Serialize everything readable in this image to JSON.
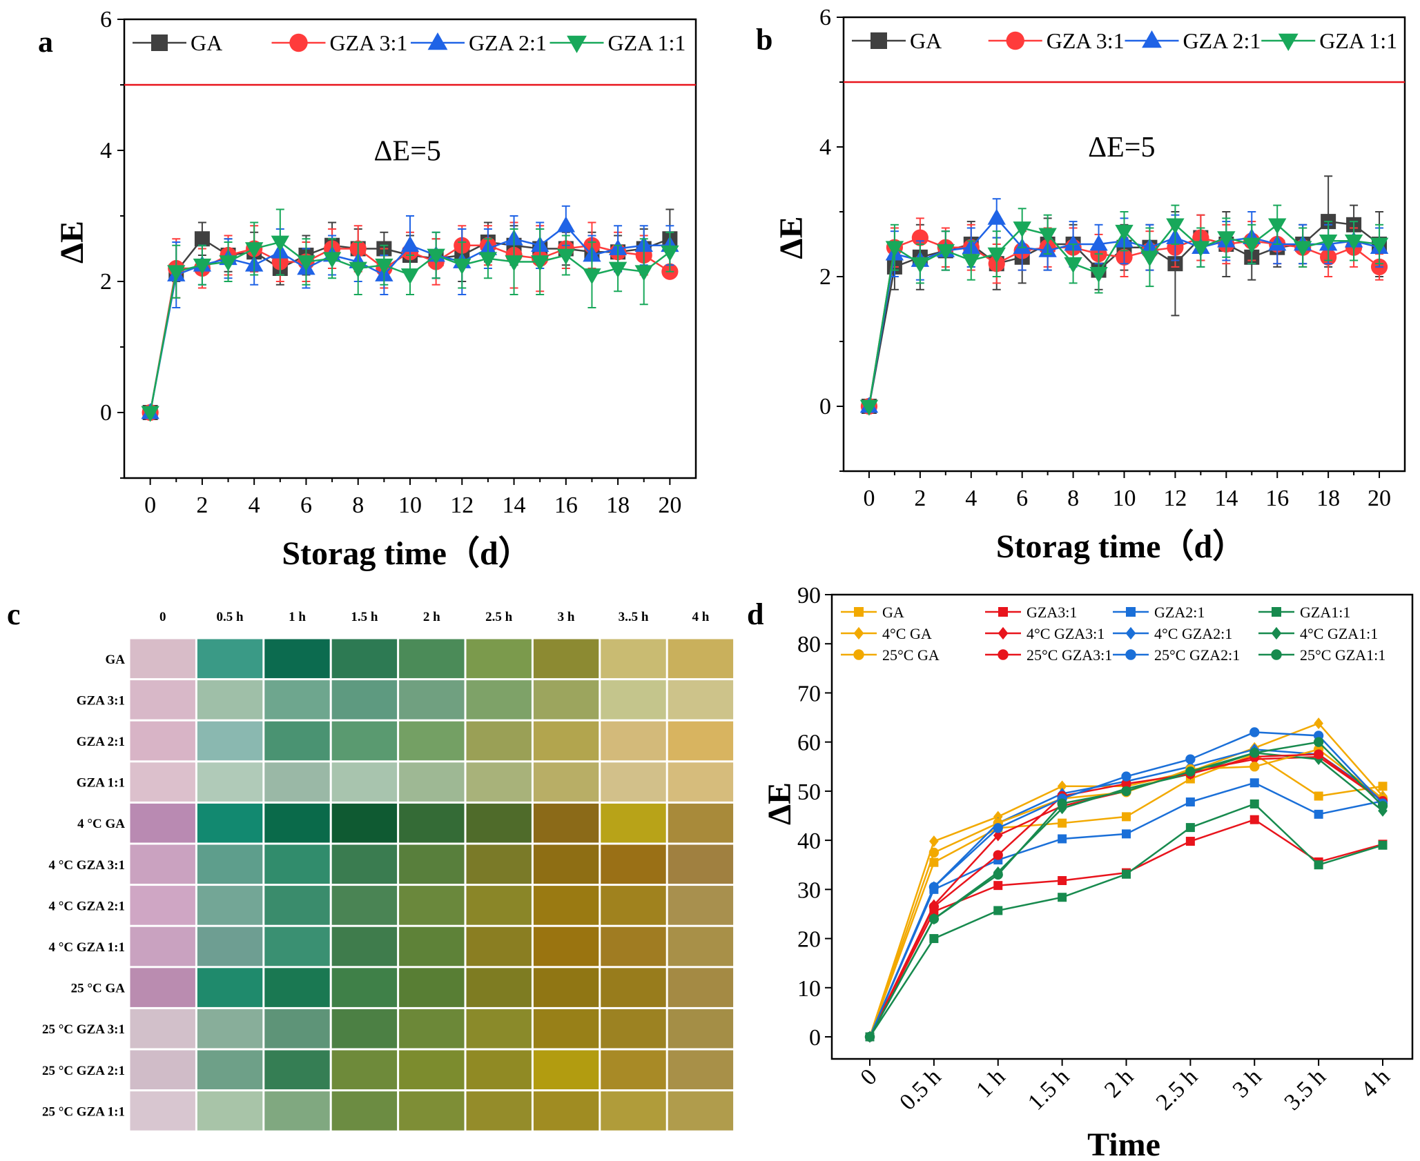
{
  "panels": {
    "a": {
      "letter": "a"
    },
    "b": {
      "letter": "b"
    },
    "c": {
      "letter": "c"
    },
    "d": {
      "letter": "d"
    }
  },
  "chart_data": [
    {
      "id": "a",
      "type": "line",
      "title": "",
      "xlabel": "Storag time（d）",
      "ylabel": "ΔE",
      "xlim": [
        -1,
        21
      ],
      "ylim": [
        -1,
        6
      ],
      "xticks": [
        0,
        2,
        4,
        6,
        8,
        10,
        12,
        14,
        16,
        18,
        20
      ],
      "yticks": [
        0,
        2,
        4,
        6
      ],
      "annotation": "ΔE=5",
      "reference_line": 5,
      "legend": "top",
      "x": [
        0,
        1,
        2,
        3,
        4,
        5,
        6,
        7,
        8,
        9,
        10,
        11,
        12,
        13,
        14,
        15,
        16,
        17,
        18,
        19,
        20
      ],
      "series": [
        {
          "name": "GA",
          "color": "#404040",
          "marker": "square",
          "values": [
            0,
            2.15,
            2.65,
            2.4,
            2.45,
            2.2,
            2.4,
            2.55,
            2.5,
            2.5,
            2.4,
            2.35,
            2.4,
            2.6,
            2.55,
            2.5,
            2.5,
            2.45,
            2.45,
            2.5,
            2.65
          ],
          "errors": [
            0,
            0.15,
            0.25,
            0.25,
            0.3,
            0.25,
            0.3,
            0.35,
            0.3,
            0.25,
            0.3,
            0.3,
            0.4,
            0.3,
            0.3,
            0.3,
            0.25,
            0.3,
            0.25,
            0.3,
            0.45
          ]
        },
        {
          "name": "GZA 3:1",
          "color": "#ff3b3b",
          "marker": "circle",
          "values": [
            0,
            2.2,
            2.2,
            2.4,
            2.5,
            2.3,
            2.3,
            2.5,
            2.5,
            2.2,
            2.45,
            2.3,
            2.55,
            2.55,
            2.4,
            2.35,
            2.5,
            2.55,
            2.45,
            2.4,
            2.15
          ],
          "errors": [
            0,
            0.45,
            0.3,
            0.3,
            0.35,
            0.3,
            0.3,
            0.3,
            0.35,
            0.3,
            0.3,
            0.35,
            0.3,
            0.3,
            0.5,
            0.5,
            0.3,
            0.35,
            0.3,
            0.3,
            0.1
          ]
        },
        {
          "name": "GZA 2:1",
          "color": "#1f63e6",
          "marker": "triangle-up",
          "values": [
            0,
            2.1,
            2.25,
            2.35,
            2.25,
            2.45,
            2.2,
            2.4,
            2.3,
            2.1,
            2.55,
            2.4,
            2.3,
            2.5,
            2.65,
            2.55,
            2.85,
            2.4,
            2.5,
            2.55,
            2.55
          ],
          "errors": [
            0,
            0.5,
            0.3,
            0.3,
            0.3,
            0.35,
            0.3,
            0.3,
            0.3,
            0.3,
            0.45,
            0.35,
            0.5,
            0.3,
            0.35,
            0.35,
            0.3,
            0.3,
            0.35,
            0.3,
            0.3
          ]
        },
        {
          "name": "GZA 1:1",
          "color": "#18a85a",
          "marker": "triangle-down",
          "values": [
            0,
            2.15,
            2.25,
            2.3,
            2.5,
            2.6,
            2.3,
            2.35,
            2.2,
            2.25,
            2.1,
            2.4,
            2.25,
            2.35,
            2.3,
            2.3,
            2.4,
            2.1,
            2.2,
            2.15,
            2.45
          ],
          "errors": [
            0,
            0.4,
            0.3,
            0.3,
            0.4,
            0.5,
            0.35,
            0.3,
            0.4,
            0.3,
            0.3,
            0.35,
            0.35,
            0.3,
            0.5,
            0.5,
            0.3,
            0.5,
            0.35,
            0.5,
            0.3
          ]
        }
      ]
    },
    {
      "id": "b",
      "type": "line",
      "title": "",
      "xlabel": "Storag time（d）",
      "ylabel": "ΔE",
      "xlim": [
        -1,
        21
      ],
      "ylim": [
        -1,
        6
      ],
      "xticks": [
        0,
        2,
        4,
        6,
        8,
        10,
        12,
        14,
        16,
        18,
        20
      ],
      "yticks": [
        0,
        2,
        4,
        6
      ],
      "annotation": "ΔE=5",
      "reference_line": 5,
      "legend": "top",
      "x": [
        0,
        1,
        2,
        3,
        4,
        5,
        6,
        7,
        8,
        9,
        10,
        11,
        12,
        13,
        14,
        15,
        16,
        17,
        18,
        19,
        20
      ],
      "series": [
        {
          "name": "GA",
          "color": "#404040",
          "marker": "square",
          "values": [
            0,
            2.15,
            2.3,
            2.4,
            2.5,
            2.2,
            2.3,
            2.5,
            2.5,
            2.1,
            2.45,
            2.45,
            2.2,
            2.6,
            2.5,
            2.3,
            2.45,
            2.5,
            2.85,
            2.8,
            2.5
          ],
          "errors": [
            0,
            0.35,
            0.5,
            0.3,
            0.35,
            0.4,
            0.4,
            0.4,
            0.3,
            0.3,
            0.35,
            0.35,
            0.8,
            0.35,
            0.5,
            0.35,
            0.3,
            0.3,
            0.7,
            0.3,
            0.5
          ]
        },
        {
          "name": "GZA 3:1",
          "color": "#ff3b3b",
          "marker": "circle",
          "values": [
            0,
            2.45,
            2.6,
            2.45,
            2.45,
            2.2,
            2.4,
            2.45,
            2.45,
            2.35,
            2.3,
            2.4,
            2.45,
            2.6,
            2.5,
            2.55,
            2.5,
            2.45,
            2.3,
            2.45,
            2.15
          ],
          "errors": [
            0,
            0.3,
            0.3,
            0.3,
            0.35,
            0.3,
            0.3,
            0.3,
            0.3,
            0.3,
            0.3,
            0.3,
            0.3,
            0.35,
            0.3,
            0.3,
            0.3,
            0.3,
            0.3,
            0.3,
            0.2
          ]
        },
        {
          "name": "GZA 2:1",
          "color": "#1f63e6",
          "marker": "triangle-up",
          "values": [
            0,
            2.35,
            2.25,
            2.4,
            2.45,
            2.9,
            2.45,
            2.4,
            2.5,
            2.5,
            2.55,
            2.45,
            2.6,
            2.45,
            2.55,
            2.6,
            2.5,
            2.5,
            2.5,
            2.55,
            2.45
          ],
          "errors": [
            0,
            0.35,
            0.3,
            0.3,
            0.3,
            0.3,
            0.35,
            0.3,
            0.35,
            0.3,
            0.35,
            0.35,
            0.35,
            0.3,
            0.3,
            0.4,
            0.3,
            0.3,
            0.3,
            0.3,
            0.3
          ]
        },
        {
          "name": "GZA 1:1",
          "color": "#18a85a",
          "marker": "triangle-down",
          "values": [
            0,
            2.45,
            2.2,
            2.4,
            2.25,
            2.35,
            2.75,
            2.65,
            2.2,
            2.05,
            2.7,
            2.3,
            2.8,
            2.45,
            2.6,
            2.5,
            2.8,
            2.45,
            2.55,
            2.55,
            2.5
          ],
          "errors": [
            0,
            0.35,
            0.3,
            0.3,
            0.3,
            0.35,
            0.3,
            0.3,
            0.3,
            0.3,
            0.3,
            0.45,
            0.3,
            0.3,
            0.3,
            0.3,
            0.3,
            0.3,
            0.3,
            0.3,
            0.3
          ]
        }
      ]
    },
    {
      "id": "c",
      "type": "heatmap",
      "columns": [
        "0",
        "0.5 h",
        "1 h",
        "1.5 h",
        "2 h",
        "2.5 h",
        "3 h",
        "3..5 h",
        "4 h"
      ],
      "rows": [
        "GA",
        "GZA 3:1",
        "GZA 2:1",
        "GZA 1:1",
        "4 °C GA",
        "4 °C GZA 3:1",
        "4 °C GZA 2:1",
        "4 °C GZA 1:1",
        "25 °C GA",
        "25 °C GZA 3:1",
        "25 °C GZA 2:1",
        "25 °C GZA 1:1"
      ],
      "cell_colors": [
        [
          "#d8bcc8",
          "#3a9a86",
          "#0c6b4f",
          "#2d7a53",
          "#4b8b58",
          "#7b9a4c",
          "#8c8a32",
          "#c9bb72",
          "#c9b05c"
        ],
        [
          "#d8b8c8",
          "#9fbfa8",
          "#6ea68e",
          "#5e9a80",
          "#70a080",
          "#7ea268",
          "#9ca55e",
          "#c4c58c",
          "#cdc38a"
        ],
        [
          "#d8b4c6",
          "#8ab8b0",
          "#4a9372",
          "#5a9a70",
          "#74a064",
          "#9aa056",
          "#b2a54e",
          "#d3ba7a",
          "#d8b460"
        ],
        [
          "#dcc0cc",
          "#b0cab8",
          "#9ab8a6",
          "#a8c4ae",
          "#9eb894",
          "#a8b27a",
          "#b8ae66",
          "#d2c08a",
          "#d6bc7c"
        ],
        [
          "#b98ab2",
          "#128970",
          "#0a6a4a",
          "#0f5a32",
          "#346b36",
          "#4f6b2a",
          "#8b6a18",
          "#b8a318",
          "#a88a3a"
        ],
        [
          "#caa2c0",
          "#5e9e8c",
          "#318c6c",
          "#3a7c50",
          "#587f3c",
          "#7a7a28",
          "#8e6e14",
          "#9a7016",
          "#a08040"
        ],
        [
          "#cfa6c4",
          "#73a696",
          "#3a8c6c",
          "#4a8454",
          "#6a883c",
          "#8a8628",
          "#9a7a12",
          "#a0821e",
          "#a8904e"
        ],
        [
          "#c9a2c0",
          "#6e9e92",
          "#3a9072",
          "#3f7c4c",
          "#5e8238",
          "#8a7e22",
          "#9a7410",
          "#a07c22",
          "#a89048"
        ],
        [
          "#ba8cb0",
          "#1f8a6c",
          "#1a7852",
          "#3f8048",
          "#587e34",
          "#7e7c22",
          "#907614",
          "#987c1c",
          "#a48a44"
        ],
        [
          "#d2c0ca",
          "#88ae9a",
          "#5e9478",
          "#4c8044",
          "#6c8838",
          "#8a8a2a",
          "#988018",
          "#9c8222",
          "#a48e46"
        ],
        [
          "#d0bcc8",
          "#6ea088",
          "#357e54",
          "#6e8a3a",
          "#7c8c2e",
          "#908a24",
          "#b29c10",
          "#a88a26",
          "#a89048"
        ],
        [
          "#d8c6d0",
          "#a8c4a8",
          "#80a880",
          "#6c8c42",
          "#7e8e36",
          "#948c2a",
          "#a08c22",
          "#b09c3a",
          "#b09c4c"
        ]
      ]
    },
    {
      "id": "d",
      "type": "line",
      "title": "",
      "xlabel": "Time",
      "ylabel": "ΔE",
      "categories": [
        "0",
        "0.5 h",
        "1 h",
        "1.5 h",
        "2 h",
        "2.5 h",
        "3 h",
        "3.5 h",
        "4 h"
      ],
      "ylim": [
        0,
        90
      ],
      "yticks": [
        0,
        10,
        20,
        30,
        40,
        50,
        60,
        70,
        80,
        90
      ],
      "legend": "top",
      "series": [
        {
          "name": "GA",
          "color": "#f2a900",
          "marker": "square",
          "values": [
            0,
            35.5,
            42.5,
            43.5,
            44.8,
            52.5,
            57.5,
            49.0,
            51.0
          ]
        },
        {
          "name": "GZA3:1",
          "color": "#e8141c",
          "marker": "square",
          "values": [
            0,
            25.5,
            30.8,
            31.8,
            33.4,
            39.8,
            44.2,
            35.6,
            39.2
          ]
        },
        {
          "name": "GZA2:1",
          "color": "#1a6fd8",
          "marker": "square",
          "values": [
            0,
            30.0,
            36.0,
            40.3,
            41.3,
            47.8,
            51.7,
            45.3,
            48.0
          ]
        },
        {
          "name": "GZA1:1",
          "color": "#178a4e",
          "marker": "square",
          "values": [
            0,
            20.0,
            25.7,
            28.4,
            33.1,
            42.6,
            47.4,
            35.0,
            39.0
          ]
        },
        {
          "name": "4°C GA",
          "color": "#f2a900",
          "marker": "diamond",
          "values": [
            0,
            39.8,
            44.8,
            51.0,
            51.0,
            54.0,
            58.8,
            63.8,
            49.0
          ]
        },
        {
          "name": "4°C GZA3:1",
          "color": "#e8141c",
          "marker": "diamond",
          "values": [
            0,
            26.8,
            41.0,
            47.0,
            50.0,
            54.0,
            56.5,
            57.0,
            48.0
          ]
        },
        {
          "name": "4°C GZA2:1",
          "color": "#1a6fd8",
          "marker": "diamond",
          "values": [
            0,
            30.5,
            43.5,
            49.5,
            52.0,
            55.0,
            58.5,
            57.5,
            48.5
          ]
        },
        {
          "name": "4°C GZA1:1",
          "color": "#178a4e",
          "marker": "diamond",
          "values": [
            0,
            24.0,
            33.5,
            46.5,
            50.5,
            53.5,
            57.8,
            56.5,
            46.0
          ]
        },
        {
          "name": "25°C GA",
          "color": "#f2a900",
          "marker": "circle",
          "values": [
            0,
            37.5,
            43.5,
            48.5,
            49.8,
            54.5,
            55.0,
            58.5,
            48.5
          ]
        },
        {
          "name": "25°C GZA3:1",
          "color": "#e8141c",
          "marker": "circle",
          "values": [
            0,
            26.5,
            37.0,
            49.0,
            51.5,
            53.5,
            57.0,
            57.5,
            48.0
          ]
        },
        {
          "name": "25°C GZA2:1",
          "color": "#1a6fd8",
          "marker": "circle",
          "values": [
            0,
            30.5,
            42.5,
            48.5,
            53.0,
            56.5,
            62.0,
            61.3,
            47.5
          ]
        },
        {
          "name": "25°C GZA1:1",
          "color": "#178a4e",
          "marker": "circle",
          "values": [
            0,
            24.0,
            33.0,
            47.5,
            50.0,
            54.0,
            57.8,
            60.0,
            47.0
          ]
        }
      ]
    }
  ]
}
